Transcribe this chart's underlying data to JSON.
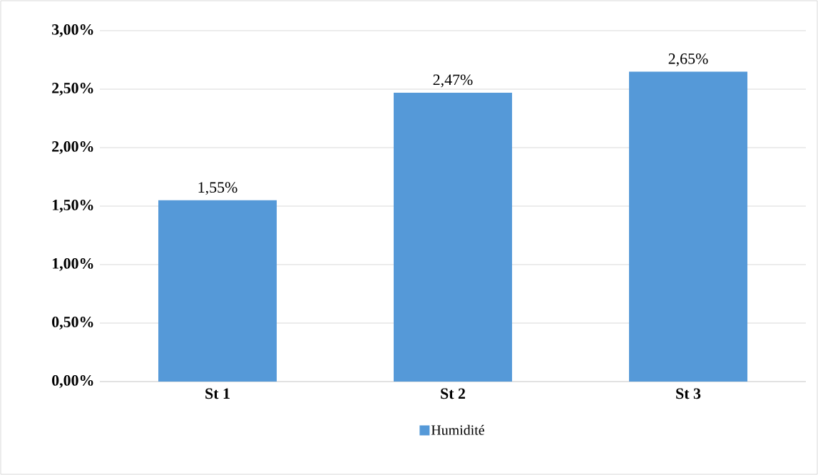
{
  "chart_data": {
    "type": "bar",
    "categories": [
      "St 1",
      "St 2",
      "St 3"
    ],
    "series": [
      {
        "name": "Humidité",
        "color": "#5599d8",
        "values": [
          1.55,
          2.47,
          2.65
        ],
        "value_labels": [
          "1,55%",
          "2,47%",
          "2,65%"
        ]
      }
    ],
    "ylim": [
      0,
      3
    ],
    "yticks": [
      {
        "value": 0,
        "label": "0,00%"
      },
      {
        "value": 0.5,
        "label": "0,50%"
      },
      {
        "value": 1,
        "label": "1,00%"
      },
      {
        "value": 1.5,
        "label": "1,50%"
      },
      {
        "value": 2,
        "label": "2,00%"
      },
      {
        "value": 2.5,
        "label": "2,50%"
      },
      {
        "value": 3,
        "label": "3,00%"
      }
    ],
    "grid": "y",
    "legend": "bottom"
  }
}
